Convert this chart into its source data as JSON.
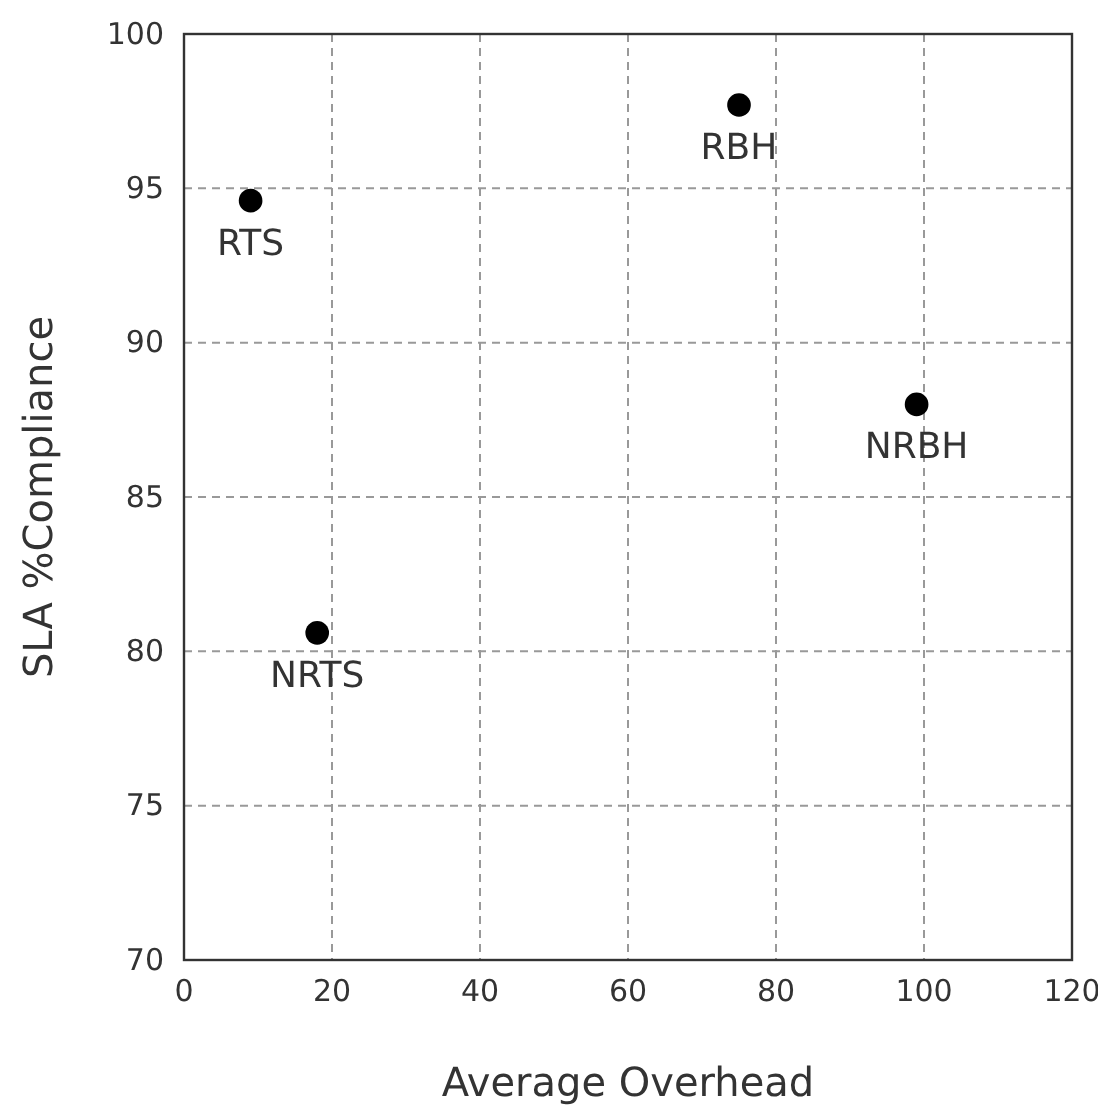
{
  "chart_data": {
    "type": "scatter",
    "xlabel": "Average Overhead",
    "ylabel": "SLA %Compliance",
    "xlim": [
      0,
      120
    ],
    "xticks": [
      0,
      20,
      40,
      60,
      80,
      100,
      120
    ],
    "ylim": [
      70,
      100
    ],
    "yticks": [
      70,
      75,
      80,
      85,
      90,
      95,
      100
    ],
    "grid": true,
    "marker": "circle",
    "series": [
      {
        "name": "RTS",
        "color": "#000000",
        "x": [
          9
        ],
        "values": [
          94.6
        ]
      },
      {
        "name": "RBH",
        "color": "#000000",
        "x": [
          75
        ],
        "values": [
          97.7
        ]
      },
      {
        "name": "NRBH",
        "color": "#000000",
        "x": [
          99
        ],
        "values": [
          88
        ]
      },
      {
        "name": "NRTS",
        "color": "#000000",
        "x": [
          18
        ],
        "values": [
          80.6
        ]
      }
    ]
  }
}
